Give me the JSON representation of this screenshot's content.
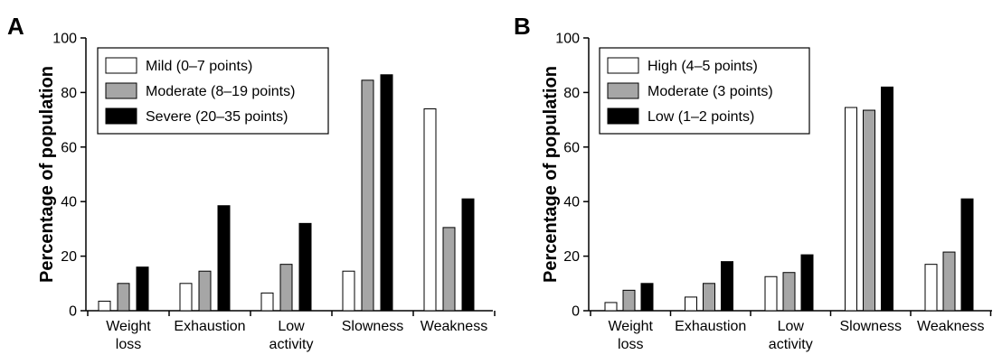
{
  "chart_data": [
    {
      "type": "bar",
      "panel": "A",
      "title": "",
      "xlabel": "",
      "ylabel": "Percentage of population",
      "ylim": [
        0,
        100
      ],
      "yticks": [
        "0",
        "20",
        "40",
        "60",
        "80",
        "100"
      ],
      "categories": [
        [
          "Weight",
          "loss"
        ],
        [
          "Exhaustion"
        ],
        [
          "Low",
          "activity"
        ],
        [
          "Slowness"
        ],
        [
          "Weakness"
        ]
      ],
      "series": [
        {
          "name": "Mild (0–7 points)",
          "color": "#ffffff",
          "values": [
            3.5,
            10,
            6.5,
            14.5,
            74
          ]
        },
        {
          "name": "Moderate (8–19 points)",
          "color": "#a6a6a6",
          "values": [
            10,
            14.5,
            17,
            84.5,
            30.5
          ]
        },
        {
          "name": "Severe (20–35 points)",
          "color": "#000000",
          "values": [
            16,
            38.5,
            32,
            86.5,
            41
          ]
        }
      ],
      "legend_position": "top-left"
    },
    {
      "type": "bar",
      "panel": "B",
      "title": "",
      "xlabel": "",
      "ylabel": "Percentage of population",
      "ylim": [
        0,
        100
      ],
      "yticks": [
        "0",
        "20",
        "40",
        "60",
        "80",
        "100"
      ],
      "categories": [
        [
          "Weight",
          "loss"
        ],
        [
          "Exhaustion"
        ],
        [
          "Low",
          "activity"
        ],
        [
          "Slowness"
        ],
        [
          "Weakness"
        ]
      ],
      "series": [
        {
          "name": "High (4–5 points)",
          "color": "#ffffff",
          "values": [
            3,
            5,
            12.5,
            74.5,
            17
          ]
        },
        {
          "name": "Moderate (3 points)",
          "color": "#a6a6a6",
          "values": [
            7.5,
            10,
            14,
            73.5,
            21.5
          ]
        },
        {
          "name": "Low (1–2 points)",
          "color": "#000000",
          "values": [
            10,
            18,
            20.5,
            82,
            41
          ]
        }
      ],
      "legend_position": "top-left"
    }
  ]
}
